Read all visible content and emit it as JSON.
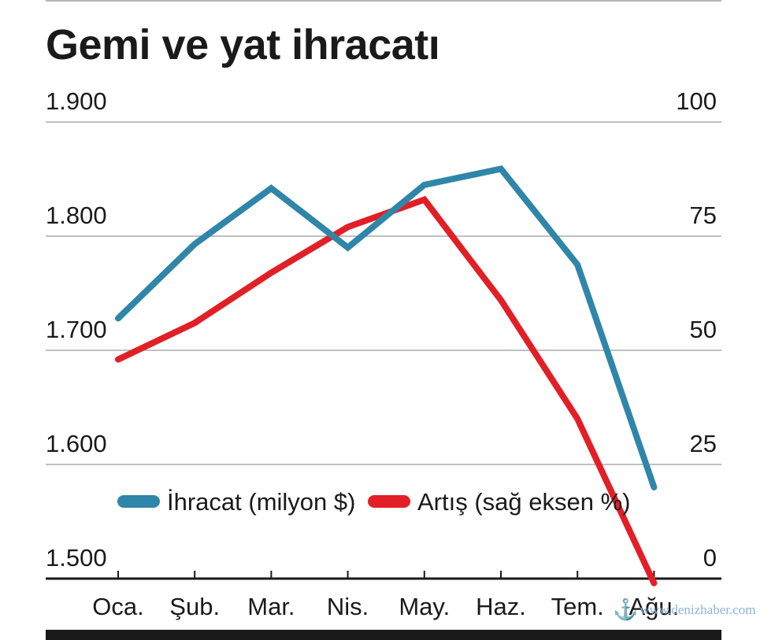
{
  "chart_data": {
    "type": "line",
    "title": "Gemi ve yat ihracatı",
    "categories": [
      "Oca.",
      "Şub.",
      "Mar.",
      "Nis.",
      "May.",
      "Haz.",
      "Tem.",
      "Ağu."
    ],
    "y_left": {
      "ticks": [
        "1.500",
        "1.600",
        "1.700",
        "1.800",
        "1.900"
      ],
      "min": 1500,
      "max": 1900
    },
    "y_right": {
      "ticks": [
        "0",
        "25",
        "50",
        "75",
        "100"
      ],
      "min": 0,
      "max": 100
    },
    "grid": true,
    "legend_position": "bottom-left",
    "series": [
      {
        "name": "İhracat (milyon $)",
        "axis": "left",
        "color": "#2f86a8",
        "values": [
          1728,
          1793,
          1842,
          1790,
          1845,
          1859,
          1775,
          1580
        ]
      },
      {
        "name": "Artış (sağ eksen %)",
        "axis": "right",
        "color": "#e21f26",
        "values": [
          48,
          56,
          67,
          77,
          83,
          61,
          35,
          -1
        ]
      }
    ]
  },
  "watermark": {
    "text": "www.denizhaber.com",
    "icon": "anchor-icon"
  }
}
